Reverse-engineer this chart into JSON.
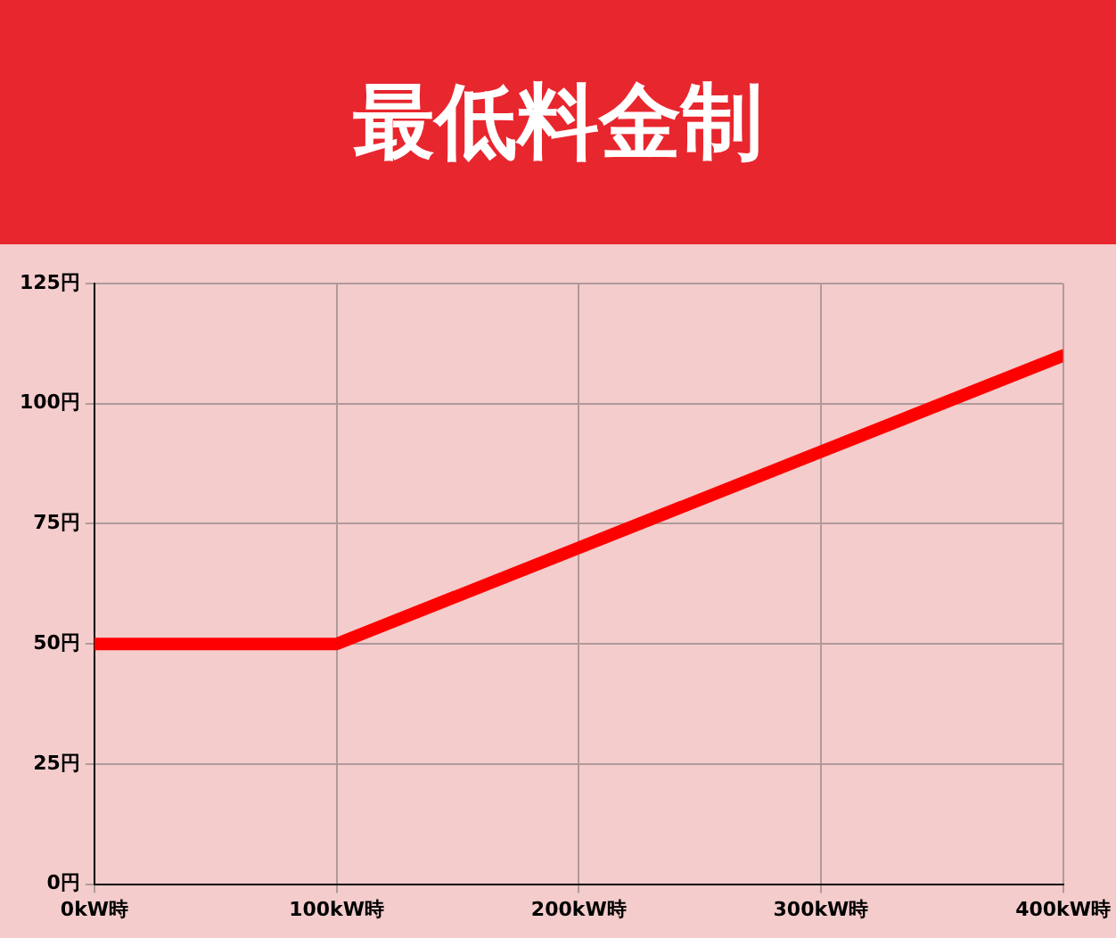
{
  "chart_data": {
    "type": "line",
    "title": "最低料金制",
    "x": [
      0,
      100,
      400
    ],
    "series": [
      {
        "color": "#ff0000",
        "values": [
          50,
          50,
          110
        ]
      }
    ],
    "xlim": [
      0,
      400
    ],
    "xticks": [
      {
        "value": 0,
        "label": "0kW時"
      },
      {
        "value": 100,
        "label": "100kW時"
      },
      {
        "value": 200,
        "label": "200kW時"
      },
      {
        "value": 300,
        "label": "300kW時"
      },
      {
        "value": 400,
        "label": "400kW時"
      }
    ],
    "ylim": [
      0,
      125
    ],
    "yticks": [
      {
        "value": 0,
        "label": "0円"
      },
      {
        "value": 25,
        "label": "25円"
      },
      {
        "value": 50,
        "label": "50円"
      },
      {
        "value": 75,
        "label": "75円"
      },
      {
        "value": 100,
        "label": "100円"
      },
      {
        "value": 125,
        "label": "125円"
      }
    ],
    "grid": true,
    "legend": false,
    "marker": "none",
    "line_style": "solid"
  }
}
